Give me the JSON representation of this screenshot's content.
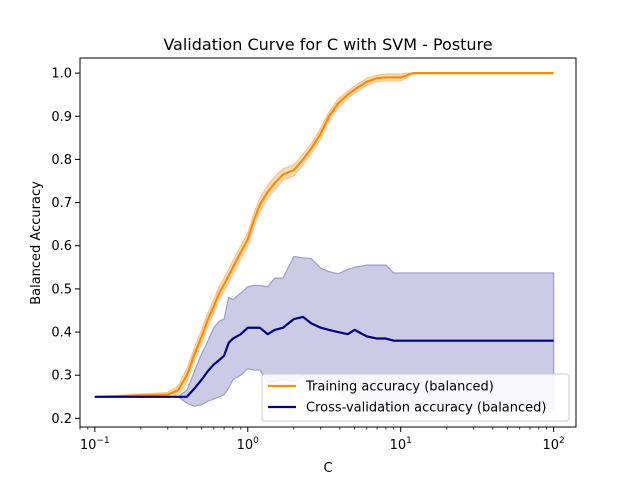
{
  "chart_data": {
    "type": "line",
    "title": "Validation Curve for C with SVM - Posture",
    "xlabel": "C",
    "ylabel": "Balanced Accuracy",
    "xscale": "log",
    "xlim": [
      0.08,
      140
    ],
    "ylim": [
      0.18,
      1.035
    ],
    "x_ticks": [
      0.1,
      1,
      10,
      100
    ],
    "x_tick_labels": [
      {
        "base": "10",
        "exp": "−1"
      },
      {
        "base": "10",
        "exp": "0"
      },
      {
        "base": "10",
        "exp": "1"
      },
      {
        "base": "10",
        "exp": "2"
      }
    ],
    "y_ticks": [
      0.2,
      0.3,
      0.4,
      0.5,
      0.6,
      0.7,
      0.8,
      0.9,
      1.0
    ],
    "y_tick_labels": [
      "0.2",
      "0.3",
      "0.4",
      "0.5",
      "0.6",
      "0.7",
      "0.8",
      "0.9",
      "1.0"
    ],
    "grid": false,
    "legend_position": "lower-right",
    "x": [
      0.1,
      0.3,
      0.35,
      0.4,
      0.45,
      0.5,
      0.55,
      0.6,
      0.65,
      0.7,
      0.75,
      0.8,
      0.9,
      1.0,
      1.1,
      1.2,
      1.35,
      1.5,
      1.7,
      2.0,
      2.3,
      2.6,
      3.0,
      3.4,
      3.9,
      4.5,
      5.0,
      6.0,
      7.0,
      8.0,
      9.0,
      10.0,
      11.0,
      12.0,
      100.0
    ],
    "series": [
      {
        "name": "Training accuracy (balanced)",
        "color": "#ff8c00",
        "values": [
          0.25,
          0.255,
          0.265,
          0.3,
          0.35,
          0.39,
          0.43,
          0.46,
          0.49,
          0.51,
          0.53,
          0.55,
          0.585,
          0.615,
          0.66,
          0.695,
          0.725,
          0.745,
          0.765,
          0.775,
          0.8,
          0.825,
          0.86,
          0.9,
          0.93,
          0.95,
          0.962,
          0.98,
          0.988,
          0.99,
          0.99,
          0.99,
          0.995,
          1.0,
          1.0
        ],
        "band_upper": [
          0.25,
          0.26,
          0.275,
          0.315,
          0.365,
          0.405,
          0.445,
          0.475,
          0.505,
          0.525,
          0.545,
          0.565,
          0.6,
          0.63,
          0.675,
          0.71,
          0.74,
          0.76,
          0.778,
          0.788,
          0.812,
          0.836,
          0.872,
          0.91,
          0.94,
          0.958,
          0.97,
          0.988,
          0.995,
          0.998,
          0.998,
          0.998,
          1.0,
          1.0,
          1.0
        ],
        "band_lower": [
          0.25,
          0.25,
          0.255,
          0.285,
          0.335,
          0.375,
          0.415,
          0.445,
          0.475,
          0.495,
          0.515,
          0.535,
          0.57,
          0.6,
          0.645,
          0.68,
          0.71,
          0.73,
          0.752,
          0.762,
          0.788,
          0.814,
          0.848,
          0.89,
          0.92,
          0.942,
          0.954,
          0.972,
          0.981,
          0.982,
          0.982,
          0.982,
          0.99,
          1.0,
          1.0
        ]
      },
      {
        "name": "Cross-validation accuracy (balanced)",
        "color": "#000080",
        "values": [
          0.25,
          0.25,
          0.25,
          0.25,
          0.27,
          0.29,
          0.31,
          0.325,
          0.335,
          0.345,
          0.375,
          0.385,
          0.395,
          0.41,
          0.41,
          0.41,
          0.395,
          0.405,
          0.41,
          0.43,
          0.435,
          0.42,
          0.41,
          0.405,
          0.4,
          0.395,
          0.405,
          0.39,
          0.385,
          0.385,
          0.38,
          0.38,
          0.38,
          0.38,
          0.38
        ],
        "band_upper": [
          0.25,
          0.25,
          0.25,
          0.265,
          0.31,
          0.35,
          0.38,
          0.41,
          0.425,
          0.43,
          0.48,
          0.475,
          0.49,
          0.505,
          0.508,
          0.508,
          0.505,
          0.525,
          0.525,
          0.575,
          0.572,
          0.57,
          0.548,
          0.54,
          0.535,
          0.545,
          0.55,
          0.555,
          0.555,
          0.555,
          0.537,
          0.537,
          0.537,
          0.537,
          0.537
        ],
        "band_lower": [
          0.25,
          0.25,
          0.25,
          0.235,
          0.228,
          0.232,
          0.24,
          0.245,
          0.25,
          0.255,
          0.27,
          0.29,
          0.3,
          0.315,
          0.312,
          0.312,
          0.285,
          0.285,
          0.29,
          0.285,
          0.3,
          0.27,
          0.272,
          0.27,
          0.265,
          0.245,
          0.26,
          0.225,
          0.223,
          0.223,
          0.223,
          0.223,
          0.223,
          0.223,
          0.223
        ]
      }
    ]
  }
}
